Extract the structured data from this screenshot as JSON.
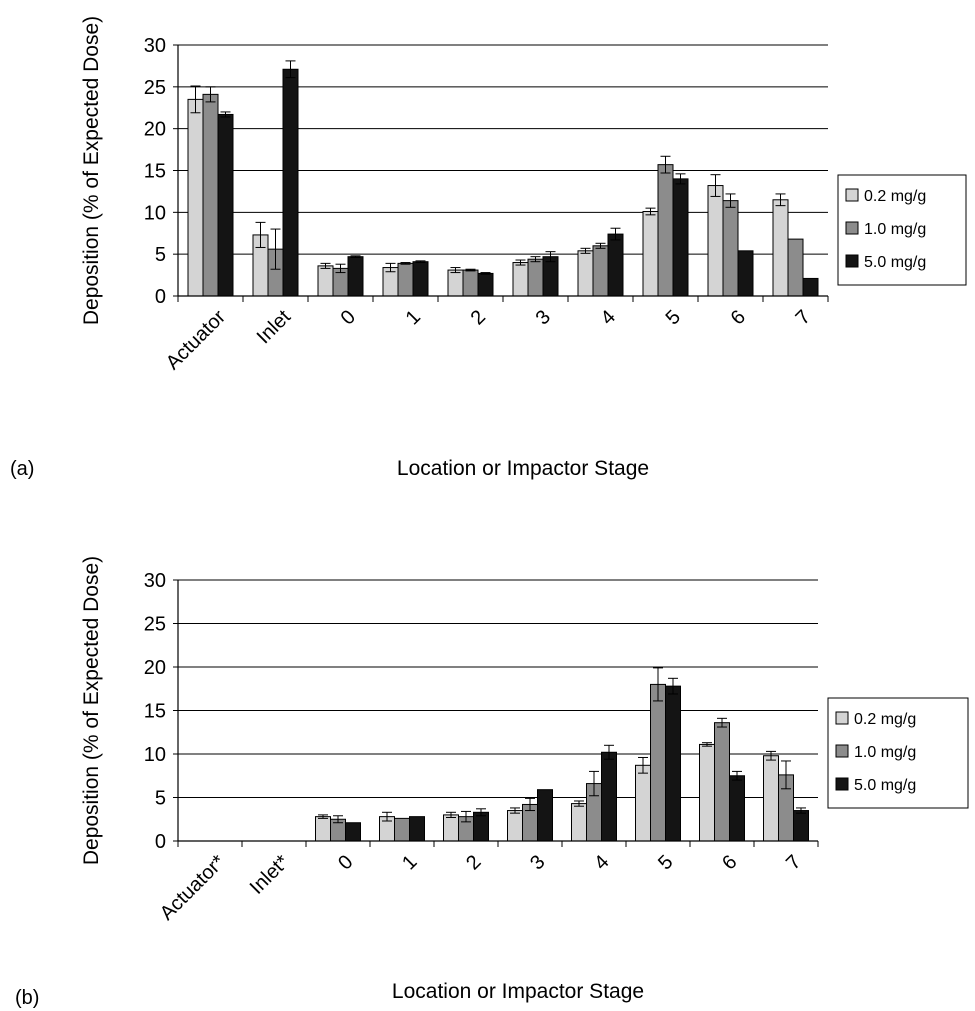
{
  "colors": {
    "s0": "#d4d4d4",
    "s1": "#8c8c8c",
    "s2": "#141414",
    "grid": "#000000"
  },
  "chart_data": [
    {
      "type": "bar",
      "panel_label": "(a)",
      "xlabel": "Location or Impactor Stage",
      "ylabel": "Deposition (% of Expected Dose)",
      "ylim": [
        0,
        30
      ],
      "yticks": [
        0,
        5,
        10,
        15,
        20,
        25,
        30
      ],
      "grid": true,
      "legend_position": "right",
      "categories": [
        "Actuator",
        "Inlet",
        "0",
        "1",
        "2",
        "3",
        "4",
        "5",
        "6",
        "7"
      ],
      "series": [
        {
          "name": "0.2 mg/g",
          "values": [
            23.5,
            7.3,
            3.6,
            3.4,
            3.1,
            4.0,
            5.4,
            10.1,
            13.2,
            11.5
          ],
          "errors": [
            1.6,
            1.5,
            0.3,
            0.5,
            0.3,
            0.3,
            0.3,
            0.4,
            1.3,
            0.7
          ]
        },
        {
          "name": "1.0 mg/g",
          "values": [
            24.1,
            5.6,
            3.3,
            3.9,
            3.1,
            4.4,
            6.0,
            15.7,
            11.4,
            6.8
          ],
          "errors": [
            0.9,
            2.4,
            0.5,
            0.1,
            0.1,
            0.3,
            0.3,
            1.0,
            0.8,
            0.0
          ]
        },
        {
          "name": "5.0 mg/g",
          "values": [
            21.7,
            27.1,
            4.7,
            4.1,
            2.7,
            4.7,
            7.4,
            14.0,
            5.4,
            2.1
          ],
          "errors": [
            0.3,
            1.0,
            0.1,
            0.1,
            0.1,
            0.6,
            0.7,
            0.6,
            0.0,
            0.0
          ]
        }
      ]
    },
    {
      "type": "bar",
      "panel_label": "(b)",
      "xlabel": "Location or Impactor Stage",
      "ylabel": "Deposition (% of Expected Dose)",
      "ylim": [
        0,
        30
      ],
      "yticks": [
        0,
        5,
        10,
        15,
        20,
        25,
        30
      ],
      "grid": true,
      "legend_position": "right",
      "categories": [
        "Actuator*",
        "Inlet*",
        "0",
        "1",
        "2",
        "3",
        "4",
        "5",
        "6",
        "7"
      ],
      "series": [
        {
          "name": "0.2 mg/g",
          "values": [
            null,
            null,
            2.8,
            2.8,
            3.0,
            3.5,
            4.3,
            8.7,
            11.1,
            9.8
          ],
          "errors": [
            0,
            0,
            0.2,
            0.5,
            0.3,
            0.3,
            0.3,
            0.9,
            0.2,
            0.5
          ]
        },
        {
          "name": "1.0 mg/g",
          "values": [
            null,
            null,
            2.5,
            2.6,
            2.8,
            4.2,
            6.6,
            18.0,
            13.6,
            7.6
          ],
          "errors": [
            0,
            0,
            0.4,
            0.0,
            0.6,
            0.7,
            1.4,
            1.9,
            0.5,
            1.6
          ]
        },
        {
          "name": "5.0 mg/g",
          "values": [
            null,
            null,
            2.1,
            2.8,
            3.3,
            5.9,
            10.2,
            17.8,
            7.5,
            3.5
          ],
          "errors": [
            0,
            0,
            0.0,
            0.0,
            0.4,
            0.0,
            0.8,
            0.9,
            0.5,
            0.3
          ]
        }
      ]
    }
  ]
}
